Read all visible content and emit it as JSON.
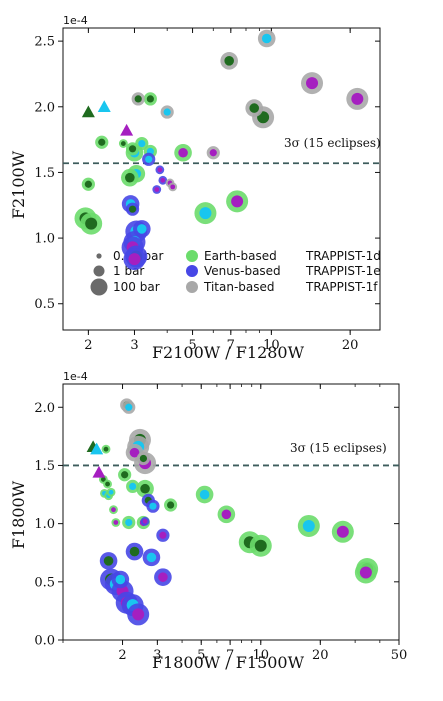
{
  "colors": {
    "earth": "#6bdc6b",
    "venus": "#4747e6",
    "titan": "#a8a8a8",
    "d": "#1f6b1f",
    "e": "#19c6ef",
    "f": "#a51fc0",
    "threshold": "#3d5c5c"
  },
  "chart_data": [
    {
      "type": "scatter",
      "x_scale": "log",
      "xlim": [
        1.6,
        26
      ],
      "ylim": [
        0.3,
        2.6
      ],
      "y_exponent_label": "1e-4",
      "xlabel": "F2100W / F1280W",
      "ylabel": "F2100W",
      "x_ticks": [
        2,
        3,
        5,
        7,
        10,
        20
      ],
      "y_ticks": [
        0.5,
        1.0,
        1.5,
        2.0,
        2.5
      ],
      "threshold": {
        "y": 1.57,
        "label": "3σ (15 eclipses)"
      },
      "legend": {
        "pressures": [
          "0.01 bar",
          "1 bar",
          "100 bar"
        ],
        "atmospheres": [
          "Earth-based",
          "Venus-based",
          "Titan-based"
        ],
        "planets": [
          "TRAPPIST-1d",
          "TRAPPIST-1e",
          "TRAPPIST-1f"
        ]
      },
      "triangles": [
        {
          "planet": "d",
          "x": 2.0,
          "y": 1.96
        },
        {
          "planet": "e",
          "x": 2.3,
          "y": 2.0
        },
        {
          "planet": "f",
          "x": 2.8,
          "y": 1.82
        }
      ],
      "points": [
        {
          "atm": "earth",
          "planet": "d",
          "p": 1,
          "x": 2.0,
          "y": 1.41
        },
        {
          "atm": "earth",
          "planet": "d",
          "p": 3,
          "x": 1.95,
          "y": 1.15
        },
        {
          "atm": "earth",
          "planet": "d",
          "p": 3,
          "x": 2.05,
          "y": 1.11
        },
        {
          "atm": "earth",
          "planet": "d",
          "p": 1,
          "x": 2.25,
          "y": 1.73
        },
        {
          "atm": "earth",
          "planet": "d",
          "p": 0,
          "x": 2.72,
          "y": 1.72
        },
        {
          "atm": "earth",
          "planet": "d",
          "p": 1,
          "x": 2.95,
          "y": 1.68
        },
        {
          "atm": "earth",
          "planet": "e",
          "p": 2,
          "x": 3.0,
          "y": 1.65
        },
        {
          "atm": "earth",
          "planet": "e",
          "p": 2,
          "x": 3.05,
          "y": 1.49
        },
        {
          "atm": "earth",
          "planet": "d",
          "p": 2,
          "x": 2.88,
          "y": 1.46
        },
        {
          "atm": "earth",
          "planet": "e",
          "p": 1,
          "x": 3.2,
          "y": 1.72
        },
        {
          "atm": "earth",
          "planet": "e",
          "p": 1,
          "x": 3.45,
          "y": 1.66
        },
        {
          "atm": "earth",
          "planet": "d",
          "p": 1,
          "x": 3.45,
          "y": 2.06
        },
        {
          "atm": "earth",
          "planet": "f",
          "p": 2,
          "x": 4.6,
          "y": 1.65
        },
        {
          "atm": "earth",
          "planet": "e",
          "p": 3,
          "x": 5.6,
          "y": 1.19
        },
        {
          "atm": "earth",
          "planet": "f",
          "p": 3,
          "x": 7.4,
          "y": 1.28
        },
        {
          "atm": "venus",
          "planet": "e",
          "p": 2,
          "x": 2.9,
          "y": 1.26
        },
        {
          "atm": "venus",
          "planet": "d",
          "p": 1,
          "x": 2.95,
          "y": 1.22
        },
        {
          "atm": "venus",
          "planet": "e",
          "p": 3,
          "x": 3.05,
          "y": 1.05
        },
        {
          "atm": "venus",
          "planet": "e",
          "p": 3,
          "x": 3.0,
          "y": 0.97
        },
        {
          "atm": "venus",
          "planet": "f",
          "p": 3,
          "x": 2.95,
          "y": 0.93
        },
        {
          "atm": "venus",
          "planet": "d",
          "p": 3,
          "x": 3.05,
          "y": 0.86
        },
        {
          "atm": "venus",
          "planet": "f",
          "p": 3,
          "x": 3.0,
          "y": 0.84
        },
        {
          "atm": "venus",
          "planet": "e",
          "p": 2,
          "x": 3.2,
          "y": 1.07
        },
        {
          "atm": "venus",
          "planet": "e",
          "p": 1,
          "x": 3.4,
          "y": 1.6
        },
        {
          "atm": "venus",
          "planet": "f",
          "p": 0,
          "x": 3.75,
          "y": 1.52
        },
        {
          "atm": "venus",
          "planet": "f",
          "p": 0,
          "x": 3.65,
          "y": 1.37
        },
        {
          "atm": "venus",
          "planet": "f",
          "p": 0,
          "x": 3.85,
          "y": 1.44
        },
        {
          "atm": "titan",
          "planet": "d",
          "p": 1,
          "x": 3.1,
          "y": 2.06
        },
        {
          "atm": "titan",
          "planet": "e",
          "p": 1,
          "x": 4.0,
          "y": 1.96
        },
        {
          "atm": "titan",
          "planet": "f",
          "p": 0,
          "x": 4.1,
          "y": 1.42
        },
        {
          "atm": "titan",
          "planet": "f",
          "p": 0,
          "x": 4.2,
          "y": 1.39
        },
        {
          "atm": "titan",
          "planet": "f",
          "p": 1,
          "x": 6.0,
          "y": 1.65
        },
        {
          "atm": "titan",
          "planet": "d",
          "p": 2,
          "x": 6.9,
          "y": 2.35
        },
        {
          "atm": "titan",
          "planet": "d",
          "p": 2,
          "x": 8.6,
          "y": 1.99
        },
        {
          "atm": "titan",
          "planet": "d",
          "p": 3,
          "x": 9.3,
          "y": 1.92
        },
        {
          "atm": "titan",
          "planet": "e",
          "p": 2,
          "x": 9.6,
          "y": 2.52
        },
        {
          "atm": "titan",
          "planet": "f",
          "p": 3,
          "x": 14.3,
          "y": 2.18
        },
        {
          "atm": "titan",
          "planet": "f",
          "p": 3,
          "x": 21.3,
          "y": 2.06
        }
      ]
    },
    {
      "type": "scatter",
      "x_scale": "log",
      "xlim": [
        1.0,
        50
      ],
      "ylim": [
        0.0,
        2.2
      ],
      "y_exponent_label": "1e-4",
      "xlabel": "F1800W / F1500W",
      "ylabel": "F1800W",
      "x_ticks": [
        2,
        3,
        5,
        7,
        10,
        20,
        50
      ],
      "y_ticks": [
        0.0,
        0.5,
        1.0,
        1.5,
        2.0
      ],
      "threshold": {
        "y": 1.5,
        "label": "3σ (15 eclipses)"
      },
      "triangles": [
        {
          "planet": "d",
          "x": 1.42,
          "y": 1.66
        },
        {
          "planet": "e",
          "x": 1.48,
          "y": 1.64
        },
        {
          "planet": "f",
          "x": 1.52,
          "y": 1.44
        }
      ],
      "points": [
        {
          "atm": "earth",
          "planet": "d",
          "p": 0,
          "x": 1.65,
          "y": 1.64
        },
        {
          "atm": "earth",
          "planet": "d",
          "p": 0,
          "x": 1.6,
          "y": 1.38
        },
        {
          "atm": "earth",
          "planet": "d",
          "p": 0,
          "x": 1.68,
          "y": 1.34
        },
        {
          "atm": "earth",
          "planet": "e",
          "p": 0,
          "x": 1.62,
          "y": 1.26
        },
        {
          "atm": "earth",
          "planet": "e",
          "p": 0,
          "x": 1.7,
          "y": 1.24
        },
        {
          "atm": "earth",
          "planet": "e",
          "p": 0,
          "x": 1.75,
          "y": 1.27
        },
        {
          "atm": "earth",
          "planet": "f",
          "p": 0,
          "x": 1.8,
          "y": 1.12
        },
        {
          "atm": "earth",
          "planet": "f",
          "p": 0,
          "x": 1.85,
          "y": 1.01
        },
        {
          "atm": "earth",
          "planet": "d",
          "p": 1,
          "x": 2.05,
          "y": 1.42
        },
        {
          "atm": "earth",
          "planet": "e",
          "p": 1,
          "x": 2.25,
          "y": 1.32
        },
        {
          "atm": "earth",
          "planet": "e",
          "p": 1,
          "x": 2.15,
          "y": 1.01
        },
        {
          "atm": "earth",
          "planet": "f",
          "p": 1,
          "x": 2.55,
          "y": 1.01
        },
        {
          "atm": "earth",
          "planet": "d",
          "p": 2,
          "x": 2.6,
          "y": 1.3
        },
        {
          "atm": "earth",
          "planet": "d",
          "p": 1,
          "x": 3.5,
          "y": 1.16
        },
        {
          "atm": "earth",
          "planet": "e",
          "p": 2,
          "x": 5.2,
          "y": 1.25
        },
        {
          "atm": "earth",
          "planet": "f",
          "p": 2,
          "x": 6.7,
          "y": 1.08
        },
        {
          "atm": "earth",
          "planet": "d",
          "p": 3,
          "x": 8.8,
          "y": 0.84
        },
        {
          "atm": "earth",
          "planet": "d",
          "p": 3,
          "x": 10.0,
          "y": 0.81
        },
        {
          "atm": "earth",
          "planet": "e",
          "p": 3,
          "x": 17.5,
          "y": 0.98
        },
        {
          "atm": "earth",
          "planet": "f",
          "p": 3,
          "x": 26.0,
          "y": 0.93
        },
        {
          "atm": "earth",
          "planet": "d",
          "p": 3,
          "x": 34.5,
          "y": 0.61
        },
        {
          "atm": "earth",
          "planet": "f",
          "p": 3,
          "x": 34.0,
          "y": 0.58
        },
        {
          "atm": "venus",
          "planet": "d",
          "p": 2,
          "x": 1.7,
          "y": 0.68
        },
        {
          "atm": "venus",
          "planet": "d",
          "p": 3,
          "x": 1.75,
          "y": 0.52
        },
        {
          "atm": "venus",
          "planet": "e",
          "p": 3,
          "x": 1.85,
          "y": 0.48
        },
        {
          "atm": "venus",
          "planet": "e",
          "p": 2,
          "x": 1.95,
          "y": 0.52
        },
        {
          "atm": "venus",
          "planet": "f",
          "p": 3,
          "x": 2.0,
          "y": 0.42
        },
        {
          "atm": "venus",
          "planet": "f",
          "p": 3,
          "x": 2.1,
          "y": 0.32
        },
        {
          "atm": "venus",
          "planet": "e",
          "p": 3,
          "x": 2.25,
          "y": 0.3
        },
        {
          "atm": "venus",
          "planet": "f",
          "p": 3,
          "x": 2.4,
          "y": 0.22
        },
        {
          "atm": "venus",
          "planet": "d",
          "p": 2,
          "x": 2.3,
          "y": 0.76
        },
        {
          "atm": "venus",
          "planet": "e",
          "p": 2,
          "x": 2.8,
          "y": 0.71
        },
        {
          "atm": "venus",
          "planet": "f",
          "p": 2,
          "x": 3.2,
          "y": 0.54
        },
        {
          "atm": "venus",
          "planet": "d",
          "p": 1,
          "x": 2.7,
          "y": 1.2
        },
        {
          "atm": "venus",
          "planet": "e",
          "p": 1,
          "x": 2.85,
          "y": 1.15
        },
        {
          "atm": "venus",
          "planet": "f",
          "p": 1,
          "x": 3.2,
          "y": 0.9
        },
        {
          "atm": "venus",
          "planet": "f",
          "p": 0,
          "x": 2.6,
          "y": 1.02
        },
        {
          "atm": "titan",
          "planet": "d",
          "p": 1,
          "x": 2.1,
          "y": 2.02
        },
        {
          "atm": "titan",
          "planet": "e",
          "p": 1,
          "x": 2.15,
          "y": 2.0
        },
        {
          "atm": "titan",
          "planet": "d",
          "p": 3,
          "x": 2.45,
          "y": 1.72
        },
        {
          "atm": "titan",
          "planet": "e",
          "p": 3,
          "x": 2.4,
          "y": 1.66
        },
        {
          "atm": "titan",
          "planet": "f",
          "p": 2,
          "x": 2.3,
          "y": 1.61
        },
        {
          "atm": "titan",
          "planet": "f",
          "p": 3,
          "x": 2.6,
          "y": 1.52
        },
        {
          "atm": "titan",
          "planet": "d",
          "p": 1,
          "x": 2.55,
          "y": 1.56
        }
      ]
    }
  ]
}
